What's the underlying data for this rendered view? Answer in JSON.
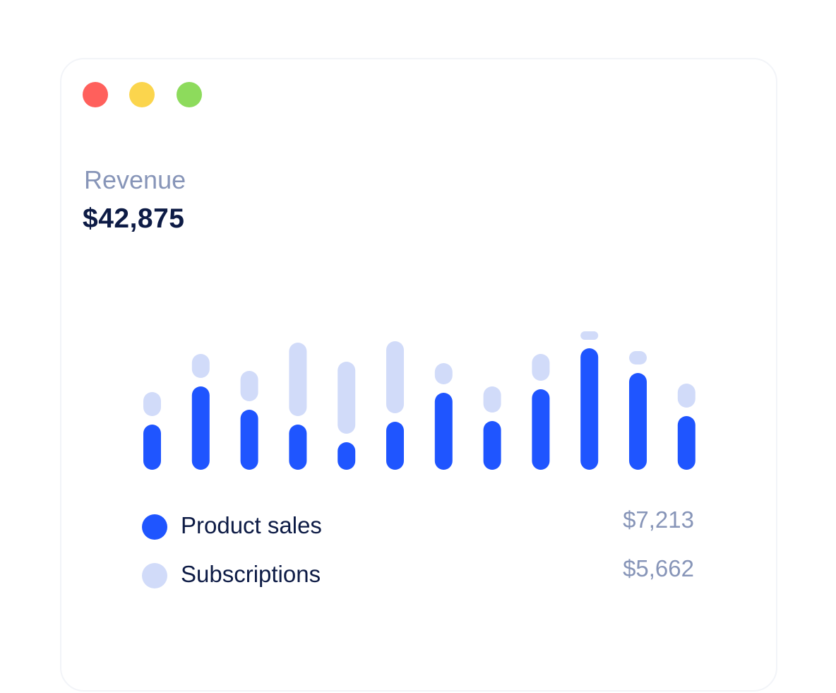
{
  "window": {
    "controls": [
      {
        "name": "close",
        "color": "#ff605c"
      },
      {
        "name": "minimize",
        "color": "#fbd54d"
      },
      {
        "name": "maximize",
        "color": "#8ddb5c"
      }
    ]
  },
  "card": {
    "label": "Revenue",
    "value": "$42,875"
  },
  "colors": {
    "product_sales": "#1f55ff",
    "subscriptions": "#d1dbf9"
  },
  "legend": [
    {
      "name": "Product sales",
      "value": "$7,213"
    },
    {
      "name": "Subscriptions",
      "value": "$5,662"
    }
  ],
  "chart_data": {
    "type": "bar",
    "stacked_with_gap": true,
    "axes_visible": false,
    "grid": false,
    "series": [
      {
        "name": "Product sales",
        "values": [
          64,
          118,
          85,
          64,
          39,
          68,
          109,
          69,
          114,
          172,
          137,
          76
        ]
      },
      {
        "name": "Subscriptions",
        "values": [
          34,
          34,
          43,
          104,
          102,
          102,
          30,
          37,
          38,
          12,
          19,
          34
        ]
      }
    ]
  }
}
